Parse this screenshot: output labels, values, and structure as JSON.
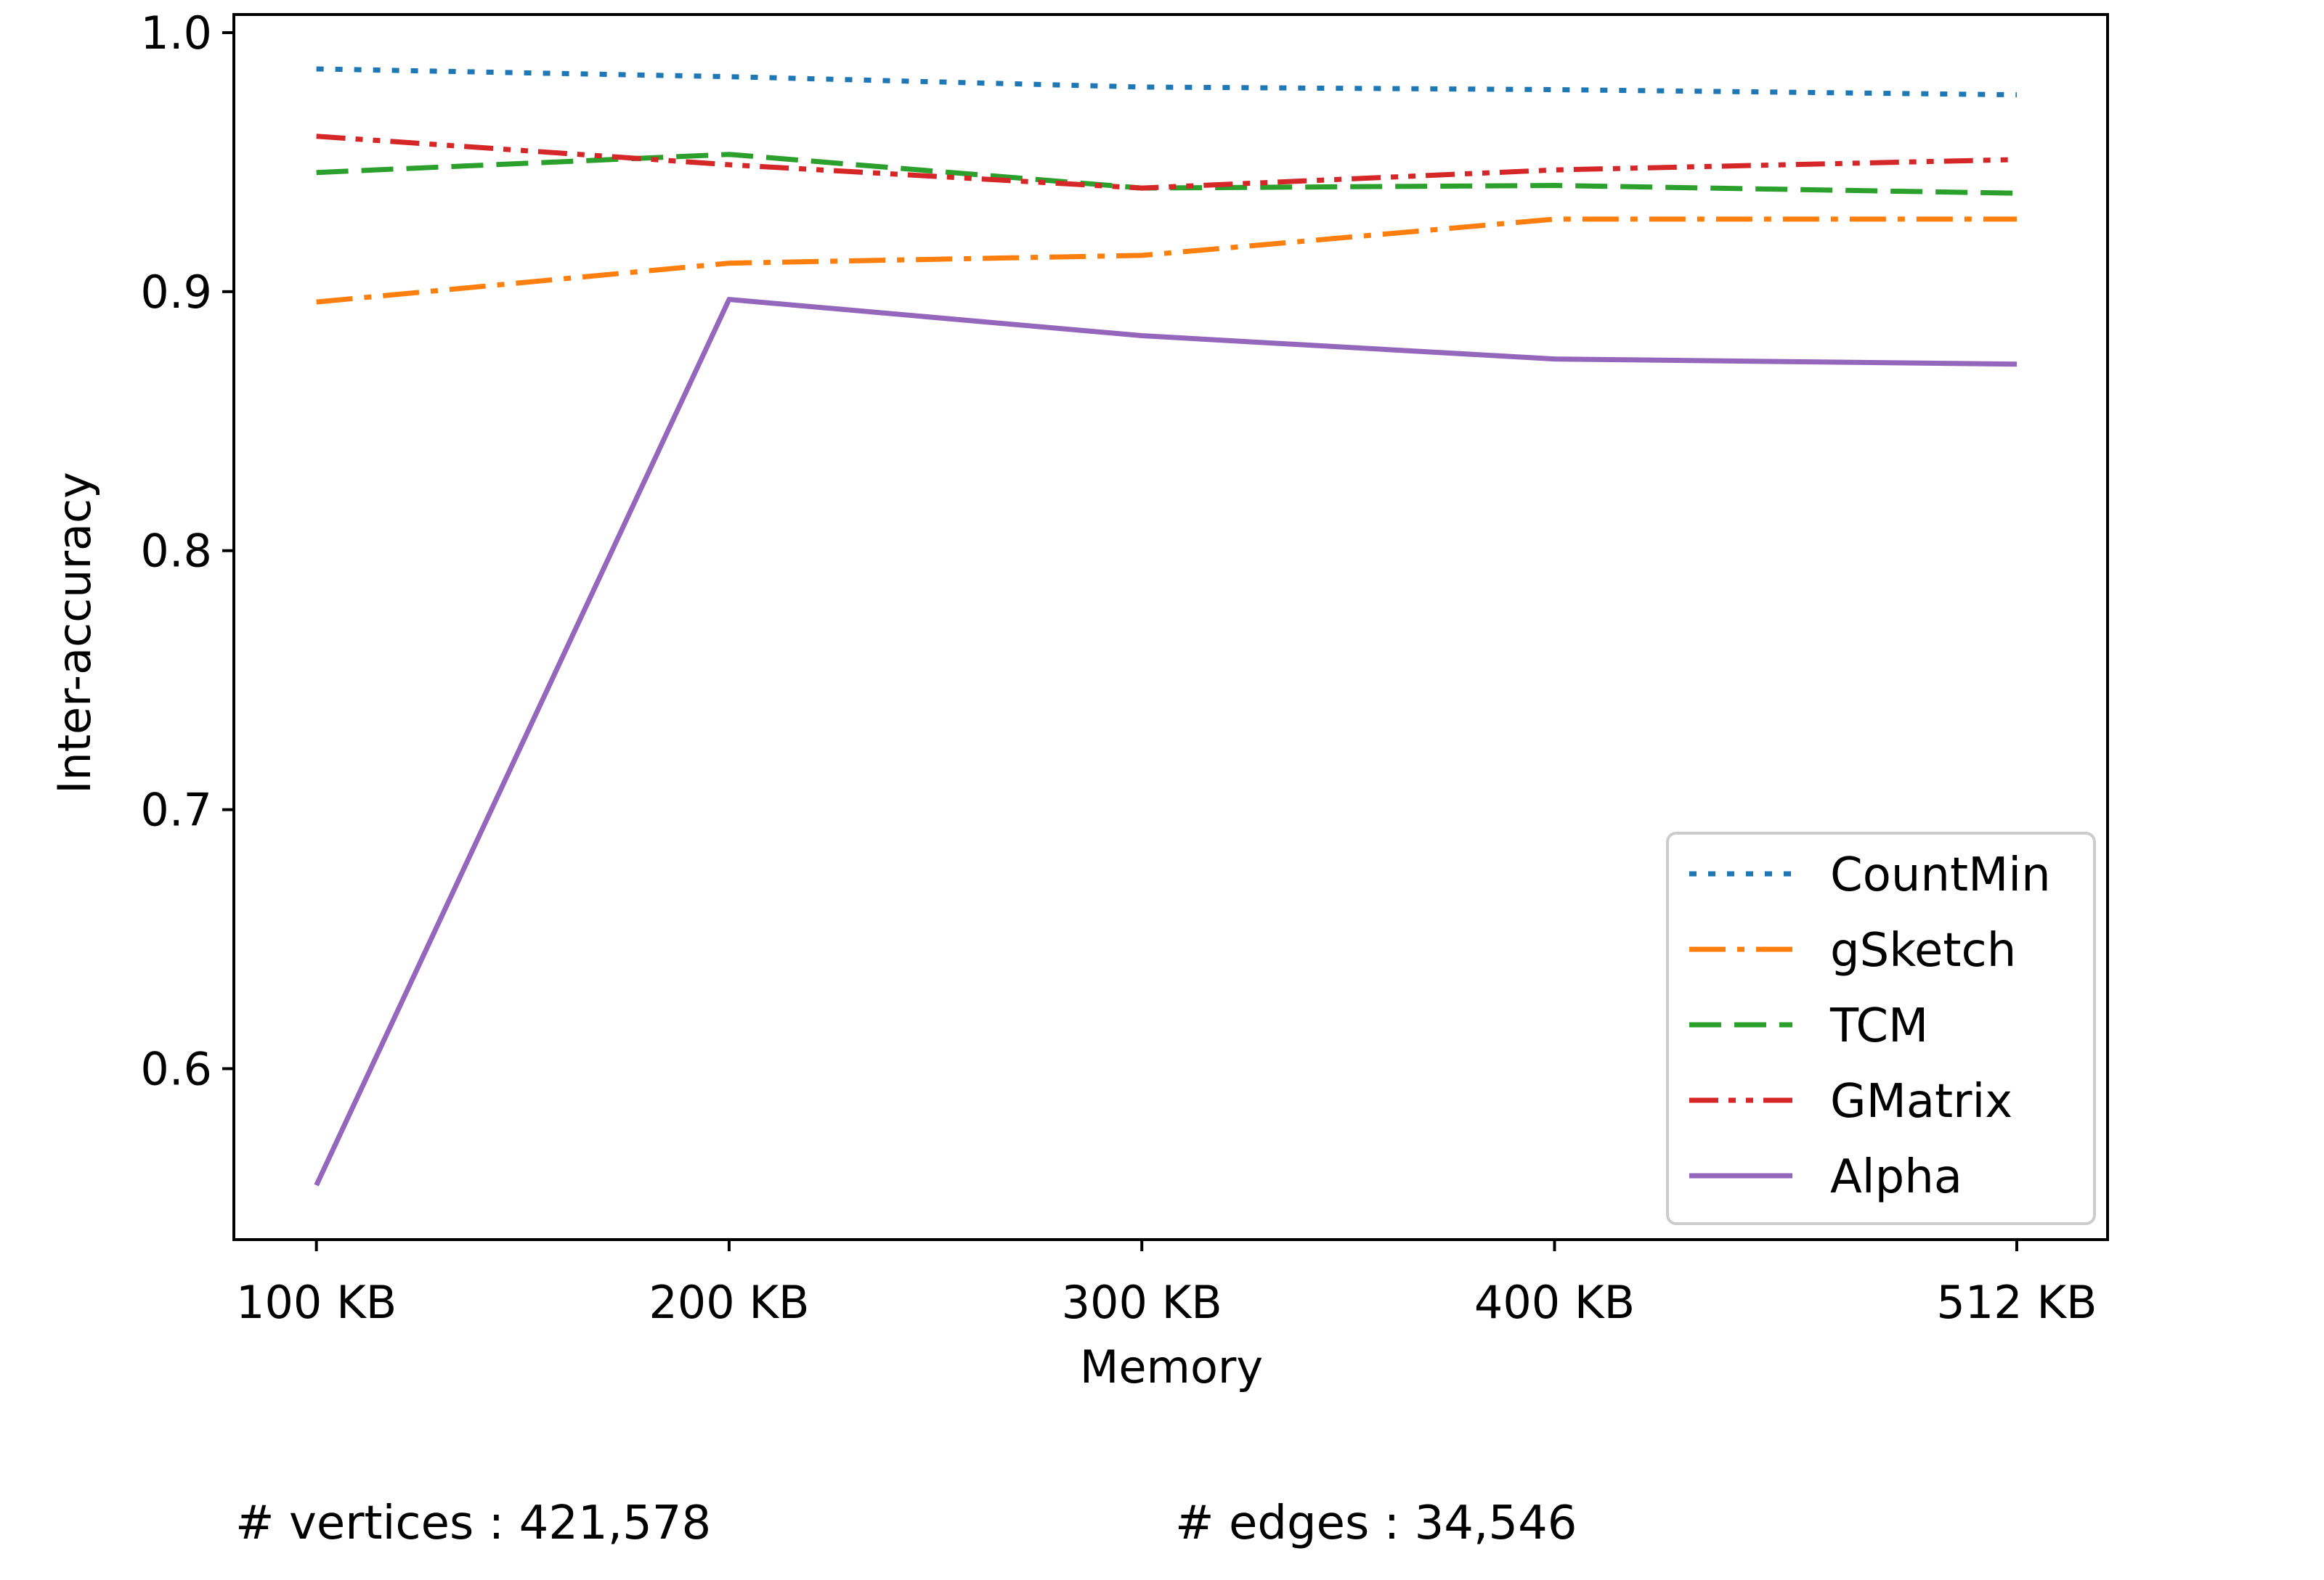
{
  "chart_data": {
    "type": "line",
    "xlabel": "Memory",
    "ylabel": "Inter-accuracy",
    "categories": [
      "100 KB",
      "200 KB",
      "300 KB",
      "400 KB",
      "512 KB"
    ],
    "x": [
      100,
      200,
      300,
      400,
      512
    ],
    "xlim": [
      80,
      534
    ],
    "ylim": [
      0.534,
      1.007
    ],
    "yticks": [
      0.6,
      0.7,
      0.8,
      0.9,
      1.0
    ],
    "ytick_labels": [
      "0.6",
      "0.7",
      "0.8",
      "0.9",
      "1.0"
    ],
    "grid": false,
    "legend_position": "lower-right",
    "series": [
      {
        "name": "CountMin",
        "color": "#1f77b4",
        "style": "dotted",
        "values": [
          0.986,
          0.983,
          0.979,
          0.978,
          0.976
        ]
      },
      {
        "name": "gSketch",
        "color": "#ff7f0e",
        "style": "dashdot",
        "values": [
          0.896,
          0.911,
          0.914,
          0.928,
          0.928
        ]
      },
      {
        "name": "TCM",
        "color": "#2ca02c",
        "style": "dashed",
        "values": [
          0.946,
          0.953,
          0.94,
          0.941,
          0.938
        ]
      },
      {
        "name": "GMatrix",
        "color": "#d62728",
        "style": "dashdotdot",
        "values": [
          0.96,
          0.949,
          0.94,
          0.947,
          0.951
        ]
      },
      {
        "name": "Alpha",
        "color": "#9467bd",
        "style": "solid",
        "values": [
          0.555,
          0.897,
          0.883,
          0.874,
          0.872
        ]
      }
    ]
  },
  "footer": {
    "vertices": "# vertices : 421,578",
    "edges": "# edges : 34,546"
  }
}
